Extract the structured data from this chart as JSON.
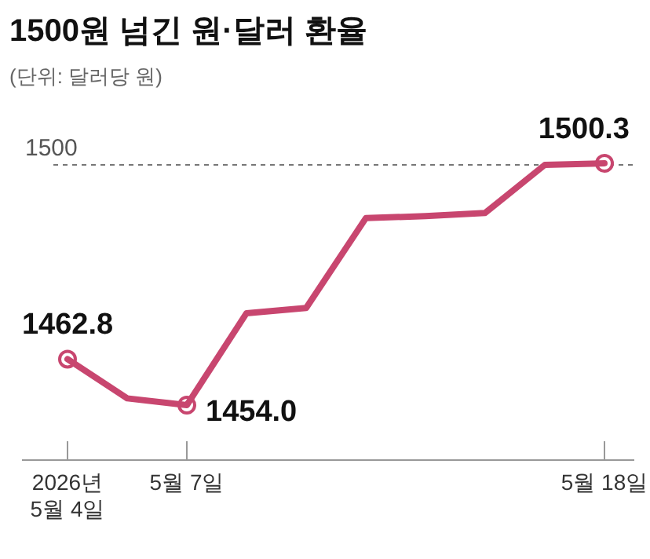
{
  "chart_data": {
    "type": "line",
    "title": "1500원 넘긴 원·달러 환율",
    "subtitle": "(단위: 달러당 원)",
    "categories": [
      "2026년\n5월 4일",
      null,
      "5월 7일",
      null,
      null,
      null,
      null,
      null,
      null,
      "5월 18일"
    ],
    "series": [
      {
        "color": "#c8466f",
        "values": [
          1462.8,
          1455.3,
          1454.0,
          1471.6,
          1472.6,
          1489.8,
          1490.2,
          1490.8,
          1500.0,
          1500.3
        ],
        "value_labels": [
          "1462.8",
          null,
          "1454.0",
          null,
          null,
          null,
          null,
          null,
          null,
          "1500.3"
        ]
      }
    ],
    "tick_labels": "x",
    "line_style": "solid",
    "ref_lines": [
      {
        "axis": "y",
        "value": 1500,
        "label": "1500",
        "color": "#777777",
        "line_style": "dashed"
      }
    ]
  }
}
